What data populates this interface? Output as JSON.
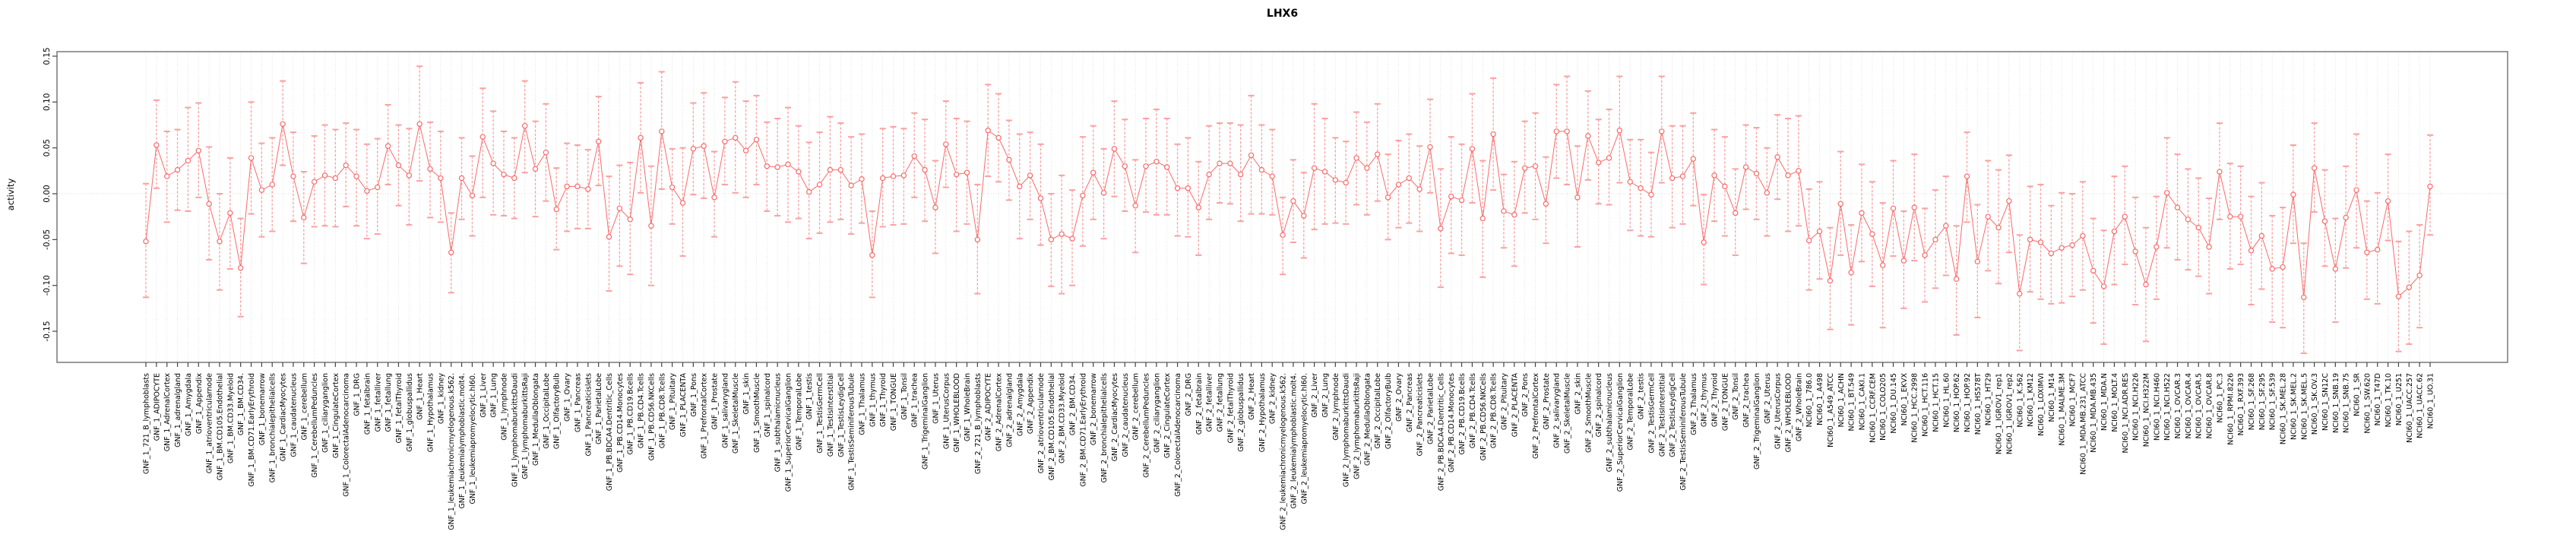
{
  "chart_data": {
    "type": "scatter",
    "title": "LHX6",
    "xlabel": "",
    "ylabel": "activity",
    "ylim": [
      -0.184,
      0.155
    ],
    "yticks": [
      0.15,
      0.1,
      0.05,
      0.0,
      -0.05,
      -0.1,
      -0.15
    ],
    "y_tick_labels": [
      "0.15",
      "0.10",
      "0.05",
      "0.00",
      "-0.05",
      "-0.10",
      "-0.15"
    ],
    "grid": "dotted vertical line per category, dotted horizontal line at 0",
    "legend_position": "none",
    "point_style": "open-circle with error bars, connected by line",
    "series_color": "#f96a6a",
    "errorbar_color": "#faa0a0",
    "gridline_color": "#d9d9d9",
    "box_color": "#808080",
    "categories": [
      "GNF_1_721_B_lymphoblasts",
      "GNF_1_ADIPOCYTE",
      "GNF_1_AdrenalCortex",
      "GNF_1_adrenalgland",
      "GNF_1_Amygdala",
      "GNF_1_Appendix",
      "GNF_1_atrioventricularnode",
      "GNF_1_BM.CD105.Endothelial",
      "GNF_1_BM.CD33.Myeloid",
      "GNF_1_BM.CD34.",
      "GNF_1_BM.CD71.EarlyErythroid",
      "GNF_1_bonemarrow",
      "GNF_1_bronchialepithelialcells",
      "GNF_1_CardiacMyocytes",
      "GNF_1_caudatenucleus",
      "GNF_1_cerebellum",
      "GNF_1_CerebellumPeduncles",
      "GNF_1_ciliaryganglion",
      "GNF_1_CingulateCortex",
      "GNF_1_ColorectalAdenocarcinoma",
      "GNF_1_DRG",
      "GNF_1_fetalbrain",
      "GNF_1_fetalliver",
      "GNF_1_fetallung",
      "GNF_1_fetalThyroid",
      "GNF_1_globuspallidus",
      "GNF_1_Heart",
      "GNF_1_Hypothalamus",
      "GNF_1_kidney",
      "GNF_1_leukemiachronicmyelogenous.k562.",
      "GNF_1_leukemialymphoblastic.molt4.",
      "GNF_1_leukemiapromyelocytic.hl60.",
      "GNF_1_Liver",
      "GNF_1_Lung",
      "GNF_1_lymphnode",
      "GNF_1_lymphomaburkittsDaudi",
      "GNF_1_lymphomaburkittsRaji",
      "GNF_1_MedullaOblongata",
      "GNF_1_OccipitalLobe",
      "GNF_1_OlfactoryBulb",
      "GNF_1_Ovary",
      "GNF_1_Pancreas",
      "GNF_1_Pancreaticislets",
      "GNF_1_ParietalLobe",
      "GNF_1_PB.BDCA4.Dentritic_Cells",
      "GNF_1_PB.CD14.Monocytes",
      "GNF_1_PB.CD19.Bcells",
      "GNF_1_PB.CD4.Tcells",
      "GNF_1_PB.CD56.NKCells",
      "GNF_1_PB.CD8.Tcells",
      "GNF_1_Pituitary",
      "GNF_1_PLACENTA",
      "GNF_1_Pons",
      "GNF_1_PrefrontalCortex",
      "GNF_1_Prostate",
      "GNF_1_salivarygland",
      "GNF_1_SkeletalMuscle",
      "GNF_1_skin",
      "GNF_1_SmoothMuscle",
      "GNF_1_spinalcord",
      "GNF_1_subthalamicnucleus",
      "GNF_1_SuperiorCervicalGanglion",
      "GNF_1_TemporalLobe",
      "GNF_1_testis",
      "GNF_1_TestisGermCell",
      "GNF_1_TestisInterstitial",
      "GNF_1_TestisLeydigCell",
      "GNF_1_TestisSeminiferousTubule",
      "GNF_1_Thalamus",
      "GNF_1_thymus",
      "GNF_1_Thyroid",
      "GNF_1_TONGUE",
      "GNF_1_Tonsil",
      "GNF_1_trachea",
      "GNF_1_TrigeminalGanglion",
      "GNF_1_Uterus",
      "GNF_1_UterusCorpus",
      "GNF_1_WHOLEBLOOD",
      "GNF_1_WholeBrain",
      "GNF_2_721_B_lymphoblasts",
      "GNF_2_ADIPOCYTE",
      "GNF_2_AdrenalCortex",
      "GNF_2_adrenalgland",
      "GNF_2_Amygdala",
      "GNF_2_Appendix",
      "GNF_2_atrioventricularnode",
      "GNF_2_BM.CD105.Endothelial",
      "GNF_2_BM.CD33.Myeloid",
      "GNF_2_BM.CD34.",
      "GNF_2_BM.CD71.EarlyErythroid",
      "GNF_2_bonemarrow",
      "GNF_2_bronchialepithelialcells",
      "GNF_2_CardiacMyocytes",
      "GNF_2_caudatenucleus",
      "GNF_2_cerebellum",
      "GNF_2_CerebellumPeduncles",
      "GNF_2_ciliaryganglion",
      "GNF_2_CingulateCortex",
      "GNF_2_ColorectalAdenocarcinoma",
      "GNF_2_DRG",
      "GNF_2_fetalbrain",
      "GNF_2_fetalliver",
      "GNF_2_fetallung",
      "GNF_2_fetalThyroid",
      "GNF_2_globuspallidus",
      "GNF_2_Heart",
      "GNF_2_Hypothalamus",
      "GNF_2_kidney",
      "GNF_2_leukemiachronicmyelogenous.k562.",
      "GNF_2_leukemialymphoblastic.molt4.",
      "GNF_2_leukemiapromyelocytic.hl60.",
      "GNF_2_Liver",
      "GNF_2_Lung",
      "GNF_2_lymphnode",
      "GNF_2_lymphomaburkittsDaudi",
      "GNF_2_lymphomaburkittsRaji",
      "GNF_2_MedullaOblongata",
      "GNF_2_OccipitalLobe",
      "GNF_2_OlfactoryBulb",
      "GNF_2_Ovary",
      "GNF_2_Pancreas",
      "GNF_2_Pancreaticislets",
      "GNF_2_ParietalLobe",
      "GNF_2_PB.BDCA4.Dentritic_Cells",
      "GNF_2_PB.CD14.Monocytes",
      "GNF_2_PB.CD19.Bcells",
      "GNF_2_PB.CD4.Tcells",
      "GNF_2_PB.CD56.NKCells",
      "GNF_2_PB.CD8.Tcells",
      "GNF_2_Pituitary",
      "GNF_2_PLACENTA",
      "GNF_2_Pons",
      "GNF_2_PrefrontalCortex",
      "GNF_2_Prostate",
      "GNF_2_salivarygland",
      "GNF_2_SkeletalMuscle",
      "GNF_2_skin",
      "GNF_2_SmoothMuscle",
      "GNF_2_spinalcord",
      "GNF_2_subthalamicnucleus",
      "GNF_2_SuperiorCervicalGanglion",
      "GNF_2_TemporalLobe",
      "GNF_2_testis",
      "GNF_2_TestisGermCell",
      "GNF_2_TestisInterstitial",
      "GNF_2_TestisLeydigCell",
      "GNF_2_TestisSeminiferousTubule",
      "GNF_2_Thalamus",
      "GNF_2_thymus",
      "GNF_2_Thyroid",
      "GNF_2_TONGUE",
      "GNF_2_Tonsil",
      "GNF_2_trachea",
      "GNF_2_TrigeminalGanglion",
      "GNF_2_Uterus",
      "GNF_2_UterusCorpus",
      "GNF_2_WHOLEBLOOD",
      "GNF_2_WholeBrain",
      "NCI60_1_786.0",
      "NCI60_1_A498",
      "NCI60_1_A549_ATCC",
      "NCI60_1_ACHN",
      "NCI60_1_BT.549",
      "NCI60_1_CAKI.1",
      "NCI60_1_CCRF.CEM",
      "NCI60_1_COLO205",
      "NCI60_1_DU.145",
      "NCI60_1_EKVX",
      "NCI60_1_HCC.2998",
      "NCI60_1_HCT.116",
      "NCI60_1_HCT.15",
      "NCI60_1_HL.60",
      "NCI60_1_HOP.62",
      "NCI60_1_HOP.92",
      "NCI60_1_HS578T",
      "NCI60_1_HT29",
      "NCI60_1_IGROV1_rep1",
      "NCI60_1_IGROV1_rep2",
      "NCI60_1_K.562",
      "NCI60_1_KM12",
      "NCI60_1_LOXIMVI",
      "NCI60_1_M14",
      "NCI60_1_MALME.3M",
      "NCI60_1_MCF7",
      "NCI60_1_MDA.MB.231_ATCC",
      "NCI60_1_MDA.MB.435",
      "NCI60_1_MDA.N",
      "NCI60_1_MOLT.4",
      "NCI60_1_NCI.ADR.RES",
      "NCI60_1_NCI.H226",
      "NCI60_1_NCI.H322M",
      "NCI60_1_NCI.H460",
      "NCI60_1_NCI.H522",
      "NCI60_1_OVCAR.3",
      "NCI60_1_OVCAR.4",
      "NCI60_1_OVCAR.5",
      "NCI60_1_OVCAR.8",
      "NCI60_1_PC.3",
      "NCI60_1_RPMI.8226",
      "NCI60_1_RXF.393",
      "NCI60_1_SF.268",
      "NCI60_1_SF.295",
      "NCI60_1_SF.539",
      "NCI60_1_SK.MEL.28",
      "NCI60_1_SK.MEL.2",
      "NCI60_1_SK.MEL.5",
      "NCI60_1_SK.OV.3",
      "NCI60_1_SN12C",
      "NCI60_1_SNB.19",
      "NCI60_1_SNB.75",
      "NCI60_1_SR",
      "NCI60_1_SW.620",
      "NCI60_1_T47D",
      "NCI60_1_TK.10",
      "NCI60_1_U251",
      "NCI60_1_UACC.257",
      "NCI60_1_UACC.62",
      "NCI60_1_UO.31"
    ],
    "values": [
      -0.052,
      0.053,
      0.019,
      0.026,
      0.036,
      0.047,
      -0.011,
      -0.052,
      -0.021,
      -0.081,
      0.039,
      0.004,
      0.01,
      0.076,
      0.019,
      -0.026,
      0.013,
      0.02,
      0.017,
      0.031,
      0.019,
      0.003,
      0.007,
      0.052,
      0.031,
      0.02,
      0.076,
      0.027,
      0.017,
      -0.064,
      0.017,
      -0.002,
      0.062,
      0.033,
      0.021,
      0.017,
      0.074,
      0.027,
      0.045,
      -0.017,
      0.008,
      0.008,
      0.005,
      0.057,
      -0.047,
      -0.016,
      -0.028,
      0.061,
      -0.035,
      0.068,
      0.007,
      -0.01,
      0.049,
      0.052,
      -0.004,
      0.057,
      0.061,
      0.047,
      0.059,
      0.03,
      0.029,
      0.032,
      0.024,
      0.002,
      0.01,
      0.026,
      0.026,
      0.009,
      0.016,
      -0.067,
      0.017,
      0.019,
      0.02,
      0.041,
      0.026,
      -0.015,
      0.054,
      0.021,
      0.023,
      -0.05,
      0.069,
      0.061,
      0.037,
      0.008,
      0.02,
      -0.005,
      -0.05,
      -0.044,
      -0.049,
      -0.002,
      0.023,
      0.001,
      0.049,
      0.03,
      -0.013,
      0.03,
      0.035,
      0.029,
      0.006,
      0.006,
      -0.015,
      0.021,
      0.033,
      0.033,
      0.021,
      0.042,
      0.026,
      0.019,
      -0.045,
      -0.008,
      -0.024,
      0.028,
      0.024,
      0.015,
      0.012,
      0.039,
      0.028,
      0.043,
      -0.004,
      0.01,
      0.017,
      0.005,
      0.051,
      -0.038,
      -0.003,
      -0.007,
      0.049,
      -0.027,
      0.065,
      -0.019,
      -0.023,
      0.028,
      0.03,
      -0.011,
      0.068,
      0.068,
      -0.004,
      0.063,
      0.034,
      0.039,
      0.069,
      0.013,
      0.006,
      -0.001,
      0.068,
      0.017,
      0.019,
      0.038,
      -0.053,
      0.02,
      0.008,
      -0.021,
      0.029,
      0.022,
      0.001,
      0.04,
      0.02,
      0.025,
      -0.051,
      -0.041,
      -0.095,
      -0.011,
      -0.086,
      -0.021,
      -0.044,
      -0.078,
      -0.016,
      -0.073,
      -0.015,
      -0.067,
      -0.05,
      -0.035,
      -0.093,
      0.019,
      -0.074,
      -0.025,
      -0.037,
      -0.008,
      -0.109,
      -0.05,
      -0.053,
      -0.065,
      -0.059,
      -0.056,
      -0.046,
      -0.084,
      -0.101,
      -0.041,
      -0.025,
      -0.063,
      -0.099,
      -0.058,
      0.001,
      -0.015,
      -0.028,
      -0.037,
      -0.058,
      0.024,
      -0.025,
      -0.025,
      -0.062,
      -0.046,
      -0.082,
      -0.08,
      -0.001,
      -0.113,
      0.028,
      -0.03,
      -0.082,
      -0.026,
      0.004,
      -0.064,
      -0.061,
      -0.008,
      -0.112,
      -0.102,
      -0.089,
      0.008
    ],
    "err_lo": [
      -0.113,
      0.006,
      -0.031,
      -0.018,
      -0.019,
      -0.004,
      -0.072,
      -0.105,
      -0.082,
      -0.134,
      -0.022,
      -0.047,
      -0.041,
      0.031,
      -0.03,
      -0.076,
      -0.036,
      -0.035,
      -0.036,
      -0.014,
      -0.035,
      -0.049,
      -0.044,
      0.01,
      -0.013,
      -0.034,
      0.014,
      -0.026,
      -0.031,
      -0.108,
      -0.028,
      -0.046,
      -0.004,
      -0.023,
      -0.024,
      -0.027,
      0.023,
      -0.025,
      -0.008,
      -0.061,
      -0.041,
      -0.038,
      -0.038,
      0.009,
      -0.106,
      -0.079,
      -0.088,
      0.001,
      -0.1,
      0.005,
      -0.033,
      -0.068,
      -0.001,
      -0.005,
      -0.047,
      0.01,
      0.001,
      -0.004,
      0.01,
      -0.019,
      -0.024,
      -0.031,
      -0.027,
      -0.049,
      -0.043,
      -0.031,
      -0.028,
      -0.044,
      -0.032,
      -0.113,
      -0.036,
      -0.034,
      -0.033,
      -0.004,
      -0.03,
      -0.065,
      0.007,
      -0.041,
      -0.033,
      -0.109,
      0.019,
      0.013,
      -0.007,
      -0.049,
      -0.028,
      -0.056,
      -0.101,
      -0.109,
      -0.1,
      -0.057,
      -0.028,
      -0.049,
      -0.003,
      -0.019,
      -0.064,
      -0.02,
      -0.023,
      -0.023,
      -0.046,
      -0.047,
      -0.067,
      -0.028,
      -0.01,
      -0.011,
      -0.03,
      -0.022,
      -0.022,
      -0.023,
      -0.088,
      -0.053,
      -0.07,
      -0.039,
      -0.033,
      -0.032,
      -0.033,
      -0.012,
      -0.023,
      -0.008,
      -0.05,
      -0.037,
      -0.032,
      -0.041,
      0.001,
      -0.102,
      -0.065,
      -0.067,
      -0.01,
      -0.091,
      0.004,
      -0.059,
      -0.079,
      -0.021,
      -0.028,
      -0.054,
      0.017,
      0.01,
      -0.058,
      0.015,
      -0.011,
      -0.012,
      0.012,
      -0.04,
      -0.046,
      -0.047,
      0.012,
      -0.037,
      -0.033,
      -0.013,
      -0.099,
      -0.03,
      -0.046,
      -0.067,
      -0.017,
      -0.028,
      -0.046,
      -0.006,
      -0.041,
      -0.035,
      -0.105,
      -0.093,
      -0.148,
      -0.067,
      -0.143,
      -0.074,
      -0.101,
      -0.146,
      -0.068,
      -0.125,
      -0.073,
      -0.118,
      -0.103,
      -0.089,
      -0.154,
      -0.031,
      -0.135,
      -0.084,
      -0.098,
      -0.064,
      -0.171,
      -0.107,
      -0.115,
      -0.12,
      -0.119,
      -0.112,
      -0.105,
      -0.141,
      -0.164,
      -0.099,
      -0.077,
      -0.121,
      -0.161,
      -0.115,
      -0.059,
      -0.072,
      -0.083,
      -0.09,
      -0.109,
      -0.028,
      -0.082,
      -0.077,
      -0.121,
      -0.104,
      -0.14,
      -0.146,
      -0.054,
      -0.174,
      -0.02,
      -0.079,
      -0.14,
      -0.081,
      -0.059,
      -0.115,
      -0.12,
      -0.051,
      -0.172,
      -0.164,
      -0.146,
      -0.045
    ],
    "err_hi": [
      0.011,
      0.102,
      0.068,
      0.07,
      0.094,
      0.099,
      0.051,
      0.0,
      0.039,
      -0.027,
      0.1,
      0.055,
      0.061,
      0.123,
      0.067,
      0.024,
      0.063,
      0.075,
      0.07,
      0.077,
      0.07,
      0.054,
      0.06,
      0.097,
      0.075,
      0.071,
      0.139,
      0.078,
      0.068,
      -0.021,
      0.061,
      0.041,
      0.115,
      0.09,
      0.068,
      0.061,
      0.123,
      0.079,
      0.098,
      0.028,
      0.055,
      0.053,
      0.048,
      0.106,
      0.019,
      0.031,
      0.034,
      0.121,
      0.03,
      0.133,
      0.049,
      0.05,
      0.099,
      0.11,
      0.046,
      0.105,
      0.122,
      0.101,
      0.107,
      0.078,
      0.082,
      0.094,
      0.074,
      0.056,
      0.067,
      0.084,
      0.077,
      0.062,
      0.065,
      -0.019,
      0.071,
      0.073,
      0.071,
      0.088,
      0.081,
      0.036,
      0.101,
      0.082,
      0.079,
      0.01,
      0.119,
      0.109,
      0.08,
      0.065,
      0.067,
      0.054,
      0.0,
      0.02,
      0.004,
      0.062,
      0.074,
      0.049,
      0.101,
      0.081,
      0.037,
      0.082,
      0.092,
      0.082,
      0.054,
      0.061,
      0.035,
      0.074,
      0.077,
      0.077,
      0.075,
      0.107,
      0.075,
      0.07,
      -0.004,
      0.037,
      0.023,
      0.098,
      0.082,
      0.061,
      0.057,
      0.089,
      0.078,
      0.098,
      0.043,
      0.058,
      0.065,
      0.052,
      0.103,
      0.027,
      0.062,
      0.054,
      0.109,
      0.036,
      0.126,
      0.021,
      0.035,
      0.079,
      0.088,
      0.04,
      0.119,
      0.128,
      0.052,
      0.112,
      0.081,
      0.092,
      0.128,
      0.059,
      0.059,
      0.045,
      0.128,
      0.074,
      0.074,
      0.088,
      -0.001,
      0.07,
      0.062,
      0.027,
      0.075,
      0.072,
      0.05,
      0.086,
      0.082,
      0.085,
      0.005,
      0.013,
      -0.037,
      0.046,
      -0.034,
      0.032,
      0.013,
      -0.01,
      0.036,
      -0.019,
      0.043,
      -0.016,
      0.004,
      0.019,
      -0.035,
      0.067,
      -0.012,
      0.036,
      0.026,
      0.042,
      -0.045,
      0.008,
      0.01,
      -0.013,
      0.001,
      0.0,
      0.013,
      -0.027,
      -0.04,
      0.019,
      0.03,
      -0.004,
      -0.037,
      -0.003,
      0.061,
      0.043,
      0.027,
      0.017,
      -0.005,
      0.077,
      0.033,
      0.03,
      -0.003,
      0.012,
      -0.024,
      -0.015,
      0.053,
      -0.054,
      0.077,
      0.026,
      -0.027,
      0.03,
      0.065,
      -0.008,
      0.001,
      0.043,
      -0.052,
      -0.041,
      -0.034,
      0.064
    ]
  }
}
